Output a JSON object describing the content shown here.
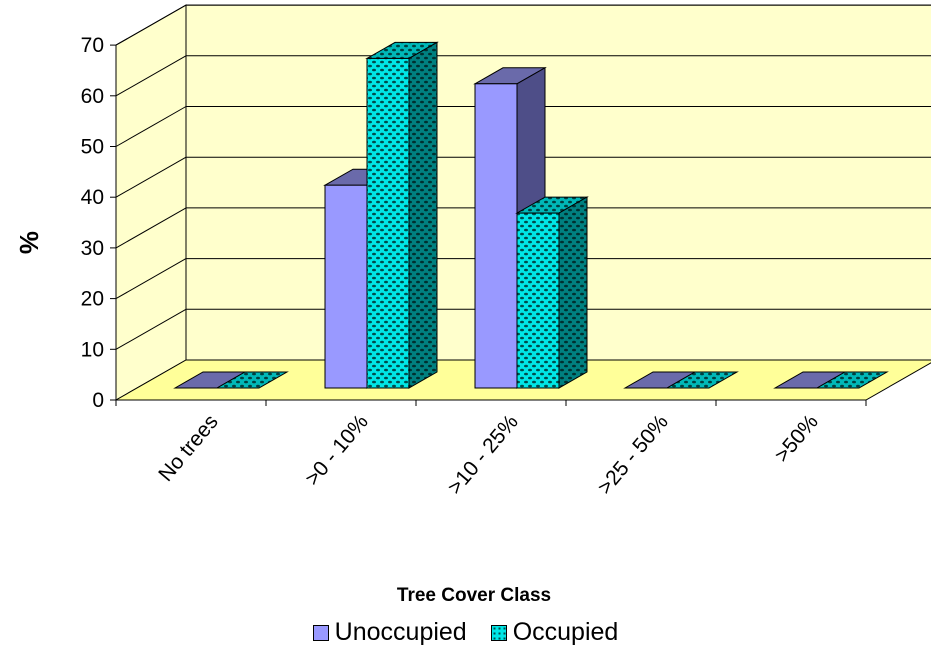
{
  "chart_data": {
    "type": "bar",
    "xlabel": "Tree Cover Class",
    "ylabel": "%",
    "ylim": [
      0,
      70
    ],
    "yticks": [
      "0",
      "10",
      "20",
      "30",
      "40",
      "50",
      "60",
      "70"
    ],
    "categories": [
      "No trees",
      ">0 - 10%",
      ">10 - 25%",
      ">25 - 50%",
      ">50%"
    ],
    "series": [
      {
        "name": "Unoccupied",
        "values": [
          0,
          40,
          60,
          0,
          0
        ]
      },
      {
        "name": "Occupied",
        "values": [
          0,
          65,
          34.5,
          0,
          0
        ]
      }
    ],
    "legend_position": "bottom",
    "grid": true,
    "colors": {
      "unoccupied_front": "#9999ff",
      "unoccupied_top": "#6a6aaa",
      "unoccupied_side": "#4e4e88",
      "occupied_front": "#00e6e6",
      "occupied_top": "#00b8b8",
      "occupied_side": "#008080",
      "wall": "#ffffcc",
      "floor": "#ffff99"
    }
  }
}
